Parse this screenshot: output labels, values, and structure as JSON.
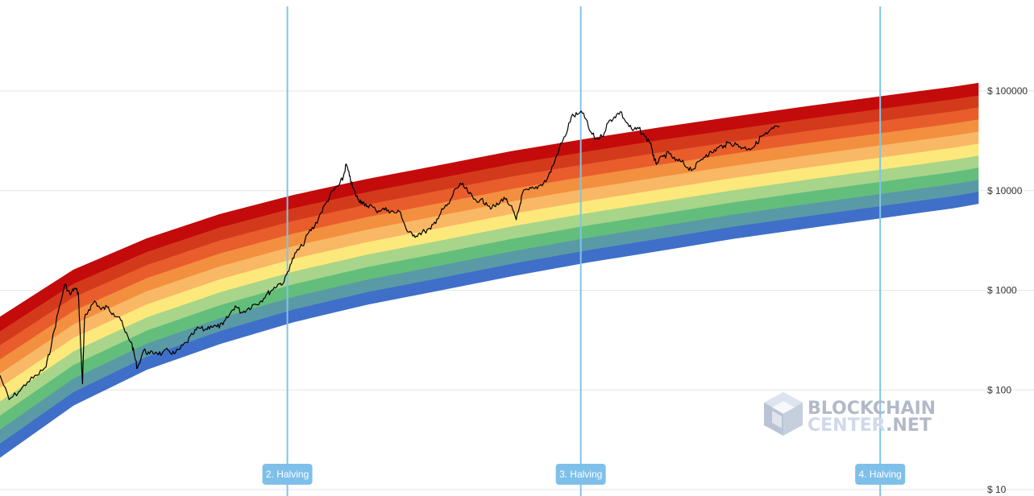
{
  "chart_data": {
    "type": "area",
    "title": "",
    "xlabel": "",
    "ylabel": "",
    "y_scale": "log",
    "y_axis_position": "right",
    "ylim": [
      10,
      1000000
    ],
    "x_range": [
      "2011-07-01",
      "2024-11-01"
    ],
    "y_ticks": [
      {
        "value": 10,
        "label": "$ 10"
      },
      {
        "value": 100,
        "label": "$ 100"
      },
      {
        "value": 1000,
        "label": "$ 1000"
      },
      {
        "value": 10000,
        "label": "$ 10000"
      },
      {
        "value": 100000,
        "label": "$ 100000"
      }
    ],
    "grid": true,
    "band_colors": [
      "#3f6fc8",
      "#5a9aa6",
      "#63be7b",
      "#a8d58a",
      "#fde97b",
      "#f9b865",
      "#f29040",
      "#e85d2b",
      "#d33a1c",
      "#c30b0b"
    ],
    "band_edges": [
      {
        "date": "2011-07-01",
        "lower": 21,
        "upper": 540
      },
      {
        "date": "2012-07-01",
        "lower": 70,
        "upper": 1600
      },
      {
        "date": "2013-07-01",
        "lower": 160,
        "upper": 3300
      },
      {
        "date": "2014-07-01",
        "lower": 290,
        "upper": 5800
      },
      {
        "date": "2015-07-01",
        "lower": 480,
        "upper": 9000
      },
      {
        "date": "2016-07-01",
        "lower": 720,
        "upper": 13000
      },
      {
        "date": "2017-07-01",
        "lower": 1000,
        "upper": 18000
      },
      {
        "date": "2018-07-01",
        "lower": 1400,
        "upper": 25000
      },
      {
        "date": "2019-07-01",
        "lower": 1900,
        "upper": 33000
      },
      {
        "date": "2020-07-01",
        "lower": 2500,
        "upper": 43000
      },
      {
        "date": "2021-07-01",
        "lower": 3300,
        "upper": 55000
      },
      {
        "date": "2022-07-01",
        "lower": 4200,
        "upper": 70000
      },
      {
        "date": "2023-07-01",
        "lower": 5300,
        "upper": 88000
      },
      {
        "date": "2024-07-01",
        "lower": 6700,
        "upper": 110000
      },
      {
        "date": "2024-11-01",
        "lower": 7400,
        "upper": 120000
      }
    ],
    "series": [
      {
        "points": [
          [
            "2011-07-01",
            140
          ],
          [
            "2011-08-15",
            80
          ],
          [
            "2011-10-01",
            95
          ],
          [
            "2011-11-15",
            120
          ],
          [
            "2012-01-01",
            140
          ],
          [
            "2012-02-15",
            170
          ],
          [
            "2012-03-15",
            300
          ],
          [
            "2012-04-15",
            600
          ],
          [
            "2012-05-20",
            1150
          ],
          [
            "2012-06-15",
            900
          ],
          [
            "2012-07-05",
            1050
          ],
          [
            "2012-07-25",
            950
          ],
          [
            "2012-08-05",
            300
          ],
          [
            "2012-08-15",
            115
          ],
          [
            "2012-08-25",
            520
          ],
          [
            "2012-09-15",
            640
          ],
          [
            "2012-10-15",
            780
          ],
          [
            "2012-11-15",
            640
          ],
          [
            "2012-12-15",
            680
          ],
          [
            "2013-01-15",
            590
          ],
          [
            "2013-02-15",
            540
          ],
          [
            "2013-03-15",
            380
          ],
          [
            "2013-04-15",
            300
          ],
          [
            "2013-05-01",
            220
          ],
          [
            "2013-05-15",
            165
          ],
          [
            "2013-06-15",
            250
          ],
          [
            "2013-07-15",
            230
          ],
          [
            "2013-08-15",
            240
          ],
          [
            "2013-09-15",
            230
          ],
          [
            "2013-10-15",
            250
          ],
          [
            "2013-11-15",
            230
          ],
          [
            "2013-12-15",
            260
          ],
          [
            "2014-01-15",
            300
          ],
          [
            "2014-02-15",
            360
          ],
          [
            "2014-03-15",
            420
          ],
          [
            "2014-04-15",
            400
          ],
          [
            "2014-05-15",
            440
          ],
          [
            "2014-06-15",
            430
          ],
          [
            "2014-07-15",
            450
          ],
          [
            "2014-08-15",
            560
          ],
          [
            "2014-09-15",
            700
          ],
          [
            "2014-10-15",
            600
          ],
          [
            "2014-11-15",
            650
          ],
          [
            "2014-12-15",
            720
          ],
          [
            "2015-01-15",
            760
          ],
          [
            "2015-02-15",
            900
          ],
          [
            "2015-03-15",
            1000
          ],
          [
            "2015-04-15",
            1150
          ],
          [
            "2015-05-15",
            1200
          ],
          [
            "2015-06-15",
            1800
          ],
          [
            "2015-07-15",
            2400
          ],
          [
            "2015-08-15",
            2800
          ],
          [
            "2015-09-15",
            3800
          ],
          [
            "2015-10-15",
            4400
          ],
          [
            "2015-11-15",
            6000
          ],
          [
            "2015-12-15",
            7800
          ],
          [
            "2016-01-15",
            10000
          ],
          [
            "2016-02-15",
            11500
          ],
          [
            "2016-03-05",
            13500
          ],
          [
            "2016-03-20",
            18500
          ],
          [
            "2016-04-05",
            14000
          ],
          [
            "2016-04-20",
            11000
          ],
          [
            "2016-05-05",
            9200
          ],
          [
            "2016-05-20",
            8200
          ],
          [
            "2016-06-05",
            7800
          ],
          [
            "2016-06-20",
            7000
          ],
          [
            "2016-07-15",
            7200
          ],
          [
            "2016-08-15",
            6300
          ],
          [
            "2016-09-15",
            6500
          ],
          [
            "2016-10-15",
            6400
          ],
          [
            "2016-11-15",
            6000
          ],
          [
            "2016-12-15",
            6100
          ],
          [
            "2017-01-15",
            4000
          ],
          [
            "2017-02-15",
            3500
          ],
          [
            "2017-03-15",
            3700
          ],
          [
            "2017-04-15",
            3900
          ],
          [
            "2017-05-15",
            4100
          ],
          [
            "2017-06-15",
            5200
          ],
          [
            "2017-07-15",
            6500
          ],
          [
            "2017-08-15",
            7400
          ],
          [
            "2017-09-15",
            10500
          ],
          [
            "2017-10-15",
            11500
          ],
          [
            "2017-11-15",
            9800
          ],
          [
            "2017-12-15",
            8200
          ],
          [
            "2018-01-15",
            8000
          ],
          [
            "2018-02-15",
            7600
          ],
          [
            "2018-03-15",
            6700
          ],
          [
            "2018-04-15",
            7200
          ],
          [
            "2018-05-15",
            8600
          ],
          [
            "2018-06-15",
            7100
          ],
          [
            "2018-07-15",
            5100
          ],
          [
            "2018-08-01",
            7000
          ],
          [
            "2018-08-15",
            9500
          ],
          [
            "2018-09-15",
            10200
          ],
          [
            "2018-10-15",
            10500
          ],
          [
            "2018-11-15",
            11500
          ],
          [
            "2018-12-15",
            13000
          ],
          [
            "2019-01-15",
            18000
          ],
          [
            "2019-02-15",
            27000
          ],
          [
            "2019-03-15",
            35000
          ],
          [
            "2019-04-15",
            55000
          ],
          [
            "2019-05-15",
            58000
          ],
          [
            "2019-06-15",
            60000
          ],
          [
            "2019-07-15",
            40000
          ],
          [
            "2019-08-15",
            33000
          ],
          [
            "2019-09-15",
            35000
          ],
          [
            "2019-10-15",
            48000
          ],
          [
            "2019-11-15",
            55000
          ],
          [
            "2019-12-15",
            62000
          ],
          [
            "2020-01-15",
            48000
          ],
          [
            "2020-02-15",
            40000
          ],
          [
            "2020-03-15",
            42000
          ],
          [
            "2020-04-15",
            35000
          ],
          [
            "2020-05-15",
            30000
          ],
          [
            "2020-06-01",
            20000
          ],
          [
            "2020-06-15",
            19000
          ],
          [
            "2020-07-15",
            22000
          ],
          [
            "2020-08-15",
            23500
          ],
          [
            "2020-09-15",
            20000
          ],
          [
            "2020-10-15",
            19500
          ],
          [
            "2020-11-15",
            17000
          ],
          [
            "2020-12-15",
            16500
          ],
          [
            "2021-01-15",
            20000
          ],
          [
            "2021-02-15",
            23000
          ],
          [
            "2021-03-15",
            24000
          ],
          [
            "2021-04-15",
            27000
          ],
          [
            "2021-05-15",
            28500
          ],
          [
            "2021-06-15",
            30000
          ],
          [
            "2021-07-15",
            29000
          ],
          [
            "2021-08-15",
            27000
          ],
          [
            "2021-09-15",
            26500
          ],
          [
            "2021-10-15",
            28000
          ],
          [
            "2021-11-15",
            35000
          ],
          [
            "2021-12-15",
            37000
          ],
          [
            "2022-01-15",
            42000
          ],
          [
            "2022-02-15",
            44000
          ]
        ]
      }
    ],
    "annotations": [
      {
        "date": "2015-06-01",
        "label": "2. Halving"
      },
      {
        "date": "2019-06-01",
        "label": "3. Halving"
      },
      {
        "date": "2023-07-01",
        "label": "4. Halving"
      }
    ]
  },
  "watermark": {
    "line1": "BLOCKCHAIN",
    "line2_prefix": "CENTER",
    "line2_suffix": ".NET"
  },
  "colors": {
    "halving_line": "#80c4e8",
    "halving_badge": "#7ec0ea",
    "price_line": "#000000",
    "grid": "#e6e6e6",
    "watermark_dark": "#b2bac8",
    "watermark_light": "#cfd9ea"
  }
}
